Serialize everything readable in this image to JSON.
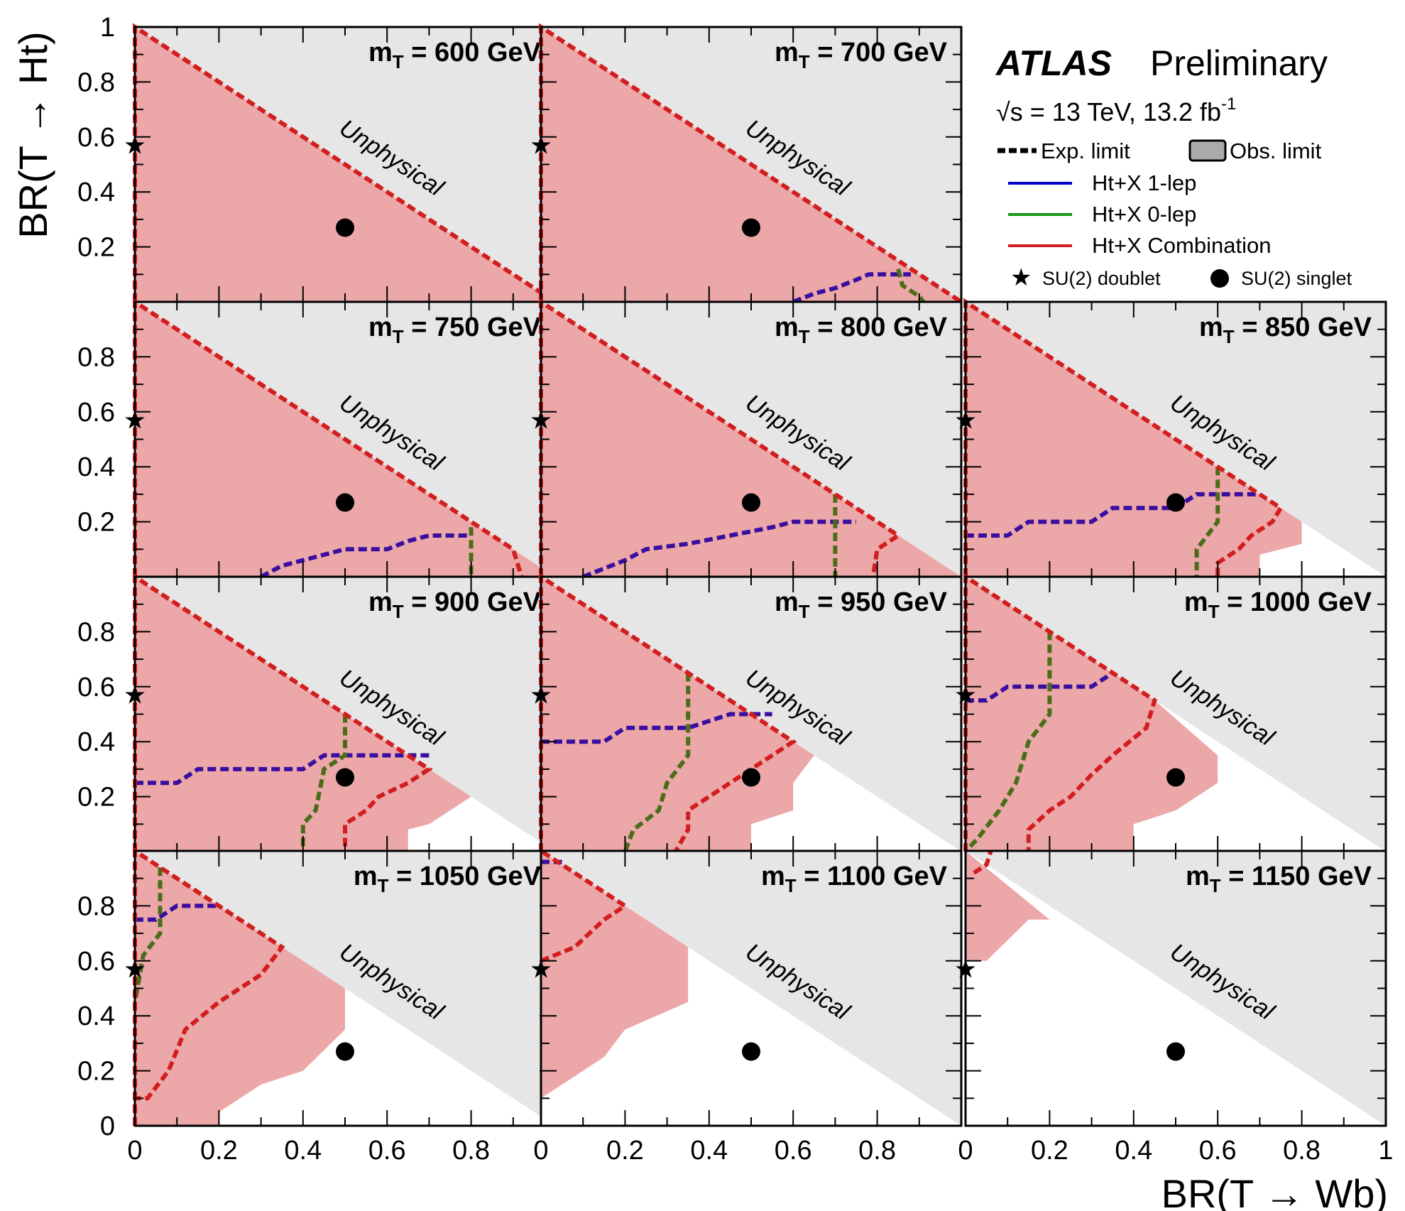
{
  "chart_data": {
    "type": "grid-of-limit-plots",
    "xlabel": "BR(T → Wb)",
    "ylabel": "BR(T → Ht)",
    "xlim": [
      0,
      1
    ],
    "ylim": [
      0,
      1
    ],
    "x_ticks": [
      "0",
      "0.2",
      "0.4",
      "0.6",
      "0.8",
      "1"
    ],
    "y_ticks_top": [
      "0.2",
      "0.4",
      "0.6",
      "0.8",
      "1"
    ],
    "y_ticks": [
      "0",
      "0.2",
      "0.4",
      "0.6",
      "0.8"
    ],
    "unphysical_label": "Unphysical",
    "doublet_point": [
      0,
      0.57
    ],
    "singlet_point": [
      0.5,
      0.27
    ],
    "panels": [
      {
        "label_prefix": "m",
        "label_sub": "T",
        "label_value": " = 600 GeV",
        "obs_region": [
          [
            0,
            0
          ],
          [
            1,
            0
          ],
          [
            0,
            1
          ]
        ],
        "exp_combination": [
          [
            0,
            0
          ],
          [
            0,
            1
          ],
          [
            1,
            0
          ]
        ],
        "exp_1lep": [],
        "exp_0lep": []
      },
      {
        "label_prefix": "m",
        "label_sub": "T",
        "label_value": " = 700 GeV",
        "obs_region": [
          [
            0,
            0
          ],
          [
            1,
            0
          ],
          [
            0,
            1
          ]
        ],
        "exp_combination": [
          [
            0,
            0
          ],
          [
            0,
            1
          ],
          [
            1,
            0
          ]
        ],
        "exp_1lep": [
          [
            0.6,
            0
          ],
          [
            0.65,
            0.03
          ],
          [
            0.7,
            0.05
          ],
          [
            0.75,
            0.08
          ],
          [
            0.78,
            0.1
          ],
          [
            0.88,
            0.1
          ]
        ],
        "exp_0lep": [
          [
            0.85,
            0.12
          ],
          [
            0.86,
            0.06
          ],
          [
            0.9,
            0.02
          ],
          [
            0.91,
            0
          ]
        ]
      },
      {
        "label_prefix": "m",
        "label_sub": "T",
        "label_value": " = 750 GeV",
        "obs_region": [
          [
            0,
            0
          ],
          [
            1,
            0
          ],
          [
            0,
            1
          ]
        ],
        "exp_combination": [
          [
            0,
            0
          ],
          [
            0,
            1
          ],
          [
            0.8,
            0.2
          ],
          [
            0.9,
            0.1
          ],
          [
            0.92,
            0
          ]
        ],
        "exp_1lep": [
          [
            0.3,
            0
          ],
          [
            0.35,
            0.04
          ],
          [
            0.4,
            0.06
          ],
          [
            0.45,
            0.08
          ],
          [
            0.5,
            0.1
          ],
          [
            0.6,
            0.1
          ],
          [
            0.65,
            0.13
          ],
          [
            0.7,
            0.15
          ],
          [
            0.8,
            0.15
          ]
        ],
        "exp_0lep": [
          [
            0.8,
            0.18
          ],
          [
            0.8,
            0
          ]
        ]
      },
      {
        "label_prefix": "m",
        "label_sub": "T",
        "label_value": " = 800 GeV",
        "obs_region": [
          [
            0,
            0
          ],
          [
            1,
            0
          ],
          [
            0,
            1
          ]
        ],
        "exp_combination": [
          [
            0,
            0
          ],
          [
            0,
            1
          ],
          [
            0.85,
            0.15
          ],
          [
            0.8,
            0.1
          ],
          [
            0.79,
            0
          ]
        ],
        "exp_1lep": [
          [
            0.1,
            0
          ],
          [
            0.15,
            0.03
          ],
          [
            0.2,
            0.06
          ],
          [
            0.25,
            0.1
          ],
          [
            0.35,
            0.12
          ],
          [
            0.45,
            0.15
          ],
          [
            0.55,
            0.18
          ],
          [
            0.6,
            0.2
          ],
          [
            0.75,
            0.2
          ]
        ],
        "exp_0lep": [
          [
            0.7,
            0.3
          ],
          [
            0.7,
            0
          ]
        ]
      },
      {
        "label_prefix": "m",
        "label_sub": "T",
        "label_value": " = 850 GeV",
        "obs_region": [
          [
            0,
            0
          ],
          [
            0.7,
            0
          ],
          [
            0.7,
            0.03
          ],
          [
            0.7,
            0.08
          ],
          [
            0.8,
            0.12
          ],
          [
            0.8,
            0.2
          ],
          [
            0,
            1
          ]
        ],
        "exp_combination": [
          [
            0,
            0
          ],
          [
            0,
            1
          ],
          [
            0.75,
            0.25
          ],
          [
            0.73,
            0.2
          ],
          [
            0.68,
            0.15
          ],
          [
            0.65,
            0.1
          ],
          [
            0.6,
            0.05
          ],
          [
            0.6,
            0
          ]
        ],
        "exp_1lep": [
          [
            0,
            0.15
          ],
          [
            0.1,
            0.15
          ],
          [
            0.15,
            0.2
          ],
          [
            0.3,
            0.2
          ],
          [
            0.35,
            0.25
          ],
          [
            0.5,
            0.25
          ],
          [
            0.55,
            0.3
          ],
          [
            0.7,
            0.3
          ]
        ],
        "exp_0lep": [
          [
            0.6,
            0.4
          ],
          [
            0.6,
            0.2
          ],
          [
            0.55,
            0.1
          ],
          [
            0.55,
            0
          ]
        ]
      },
      {
        "label_prefix": "m",
        "label_sub": "T",
        "label_value": " = 900 GeV",
        "obs_region": [
          [
            0,
            0
          ],
          [
            0.65,
            0
          ],
          [
            0.65,
            0.08
          ],
          [
            0.7,
            0.1
          ],
          [
            0.75,
            0.15
          ],
          [
            0.8,
            0.2
          ],
          [
            0,
            1
          ]
        ],
        "exp_combination": [
          [
            0,
            0
          ],
          [
            0,
            1
          ],
          [
            0.7,
            0.3
          ],
          [
            0.65,
            0.25
          ],
          [
            0.58,
            0.2
          ],
          [
            0.55,
            0.15
          ],
          [
            0.5,
            0.1
          ],
          [
            0.5,
            0
          ]
        ],
        "exp_1lep": [
          [
            0,
            0.25
          ],
          [
            0.1,
            0.25
          ],
          [
            0.15,
            0.3
          ],
          [
            0.4,
            0.3
          ],
          [
            0.45,
            0.35
          ],
          [
            0.7,
            0.35
          ]
        ],
        "exp_0lep": [
          [
            0.5,
            0.5
          ],
          [
            0.5,
            0.35
          ],
          [
            0.45,
            0.3
          ],
          [
            0.43,
            0.15
          ],
          [
            0.4,
            0.1
          ],
          [
            0.4,
            0
          ]
        ]
      },
      {
        "label_prefix": "m",
        "label_sub": "T",
        "label_value": " = 950 GeV",
        "obs_region": [
          [
            0,
            0
          ],
          [
            0.5,
            0
          ],
          [
            0.5,
            0.1
          ],
          [
            0.6,
            0.15
          ],
          [
            0.6,
            0.25
          ],
          [
            0.65,
            0.35
          ],
          [
            0,
            1
          ]
        ],
        "exp_combination": [
          [
            0,
            0
          ],
          [
            0,
            1
          ],
          [
            0.6,
            0.4
          ],
          [
            0.55,
            0.35
          ],
          [
            0.5,
            0.3
          ],
          [
            0.45,
            0.25
          ],
          [
            0.4,
            0.2
          ],
          [
            0.35,
            0.15
          ],
          [
            0.35,
            0.08
          ],
          [
            0.32,
            0
          ]
        ],
        "exp_1lep": [
          [
            0,
            0.4
          ],
          [
            0.15,
            0.4
          ],
          [
            0.2,
            0.45
          ],
          [
            0.35,
            0.45
          ],
          [
            0.45,
            0.5
          ],
          [
            0.55,
            0.5
          ]
        ],
        "exp_0lep": [
          [
            0.35,
            0.65
          ],
          [
            0.35,
            0.35
          ],
          [
            0.3,
            0.25
          ],
          [
            0.28,
            0.15
          ],
          [
            0.22,
            0.08
          ],
          [
            0.2,
            0
          ]
        ]
      },
      {
        "label_prefix": "m",
        "label_sub": "T",
        "label_value": " = 1000 GeV",
        "obs_region": [
          [
            0,
            0
          ],
          [
            0.4,
            0
          ],
          [
            0.4,
            0.1
          ],
          [
            0.5,
            0.15
          ],
          [
            0.6,
            0.25
          ],
          [
            0.6,
            0.35
          ],
          [
            0.45,
            0.55
          ],
          [
            0,
            1
          ]
        ],
        "exp_combination": [
          [
            0,
            0
          ],
          [
            0,
            1
          ],
          [
            0.45,
            0.55
          ],
          [
            0.43,
            0.45
          ],
          [
            0.35,
            0.35
          ],
          [
            0.3,
            0.28
          ],
          [
            0.25,
            0.2
          ],
          [
            0.2,
            0.15
          ],
          [
            0.15,
            0.08
          ],
          [
            0.15,
            0
          ]
        ],
        "exp_1lep": [
          [
            0,
            0.55
          ],
          [
            0.05,
            0.55
          ],
          [
            0.1,
            0.6
          ],
          [
            0.3,
            0.6
          ],
          [
            0.35,
            0.65
          ]
        ],
        "exp_0lep": [
          [
            0.2,
            0.8
          ],
          [
            0.2,
            0.5
          ],
          [
            0.15,
            0.4
          ],
          [
            0.12,
            0.25
          ],
          [
            0.08,
            0.15
          ],
          [
            0.03,
            0.05
          ],
          [
            0,
            0
          ]
        ]
      },
      {
        "label_prefix": "m",
        "label_sub": "T",
        "label_value": " = 1050 GeV",
        "obs_region": [
          [
            0,
            0
          ],
          [
            0.2,
            0
          ],
          [
            0.2,
            0.05
          ],
          [
            0.3,
            0.15
          ],
          [
            0.4,
            0.2
          ],
          [
            0.5,
            0.35
          ],
          [
            0.5,
            0.5
          ],
          [
            0,
            1
          ]
        ],
        "exp_combination": [
          [
            0,
            0
          ],
          [
            0,
            1
          ],
          [
            0.35,
            0.65
          ],
          [
            0.3,
            0.55
          ],
          [
            0.2,
            0.45
          ],
          [
            0.12,
            0.35
          ],
          [
            0.08,
            0.2
          ],
          [
            0.03,
            0.1
          ],
          [
            0,
            0.1
          ]
        ],
        "exp_1lep": [
          [
            0,
            0.75
          ],
          [
            0.05,
            0.75
          ],
          [
            0.1,
            0.8
          ],
          [
            0.2,
            0.8
          ]
        ],
        "exp_0lep": [
          [
            0.06,
            0.94
          ],
          [
            0.06,
            0.7
          ],
          [
            0.02,
            0.62
          ],
          [
            0,
            0.45
          ]
        ]
      },
      {
        "label_prefix": "m",
        "label_sub": "T",
        "label_value": " = 1100 GeV",
        "obs_region": [
          [
            0,
            0
          ],
          [
            0,
            0.1
          ],
          [
            0.05,
            0.15
          ],
          [
            0.15,
            0.25
          ],
          [
            0.2,
            0.35
          ],
          [
            0.35,
            0.45
          ],
          [
            0.35,
            0.65
          ],
          [
            0,
            1
          ]
        ],
        "exp_combination": [
          [
            0,
            0.6
          ],
          [
            0.08,
            0.65
          ],
          [
            0.15,
            0.75
          ],
          [
            0.2,
            0.8
          ],
          [
            0,
            1
          ]
        ],
        "exp_1lep": [
          [
            0,
            0.96
          ],
          [
            0.05,
            0.96
          ]
        ],
        "exp_0lep": []
      },
      {
        "label_prefix": "m",
        "label_sub": "T",
        "label_value": " = 1150 GeV",
        "obs_region": [
          [
            0,
            0.6
          ],
          [
            0.05,
            0.6
          ],
          [
            0.15,
            0.75
          ],
          [
            0.2,
            0.75
          ],
          [
            0,
            1
          ]
        ],
        "exp_combination": [
          [
            0.02,
            0.92
          ],
          [
            0.05,
            0.95
          ],
          [
            0.06,
            1
          ]
        ],
        "exp_1lep": [],
        "exp_0lep": []
      }
    ]
  },
  "legend": {
    "atlas": "ATLAS",
    "preliminary": "Preliminary",
    "energy_sqrt": "√s",
    "energy_text": " = 13 TeV, 13.2  fb",
    "energy_sup": "-1",
    "exp_limit": "Exp. limit",
    "obs_limit": "Obs. limit",
    "one_lep": "Ht+X 1-lep",
    "zero_lep": "Ht+X 0-lep",
    "combination": "Ht+X Combination",
    "doublet": "SU(2) doublet",
    "singlet": "SU(2) singlet"
  },
  "colors": {
    "excluded_fill": "#eca7a9",
    "unphysical_fill": "#e6e6e6",
    "combination_line": "#d21e1e",
    "one_lep_line": "#3a0fa0",
    "zero_lep_line": "#4b6d18",
    "one_lep_legend": "#0000cc",
    "zero_lep_legend": "#159615"
  }
}
